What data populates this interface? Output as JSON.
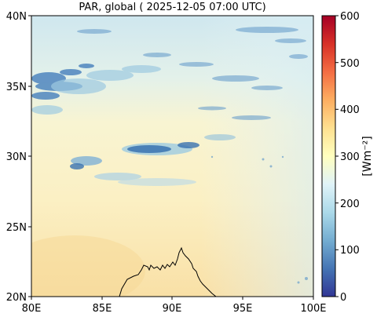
{
  "title": "PAR, global ( 2025-12-05 07:00 UTC)",
  "axes": {
    "x_ticks": [
      "80E",
      "85E",
      "90E",
      "95E",
      "100E"
    ],
    "y_ticks": [
      "20N",
      "25N",
      "30N",
      "35N",
      "40N"
    ],
    "lon_range": [
      80,
      100
    ],
    "lat_range": [
      20,
      40
    ]
  },
  "colorbar": {
    "label": "[Wm⁻²]",
    "ticks": [
      "0",
      "100",
      "200",
      "300",
      "400",
      "500",
      "600"
    ],
    "range": [
      0,
      600
    ],
    "colormap": "RdYlBu_r",
    "colors": [
      "#313695",
      "#4575b4",
      "#74add1",
      "#abd9e9",
      "#e0f3f8",
      "#ffffbf",
      "#fee090",
      "#fdae61",
      "#f46d43",
      "#d73027",
      "#a50026"
    ]
  },
  "field_colors": {
    "north_haze": "#cfe7ef",
    "mid_band": "#fbf3c8",
    "south_warm": "#f9e0a6",
    "cloud_light": "#9ecae1",
    "cloud_dark": "#3a72b0"
  }
}
